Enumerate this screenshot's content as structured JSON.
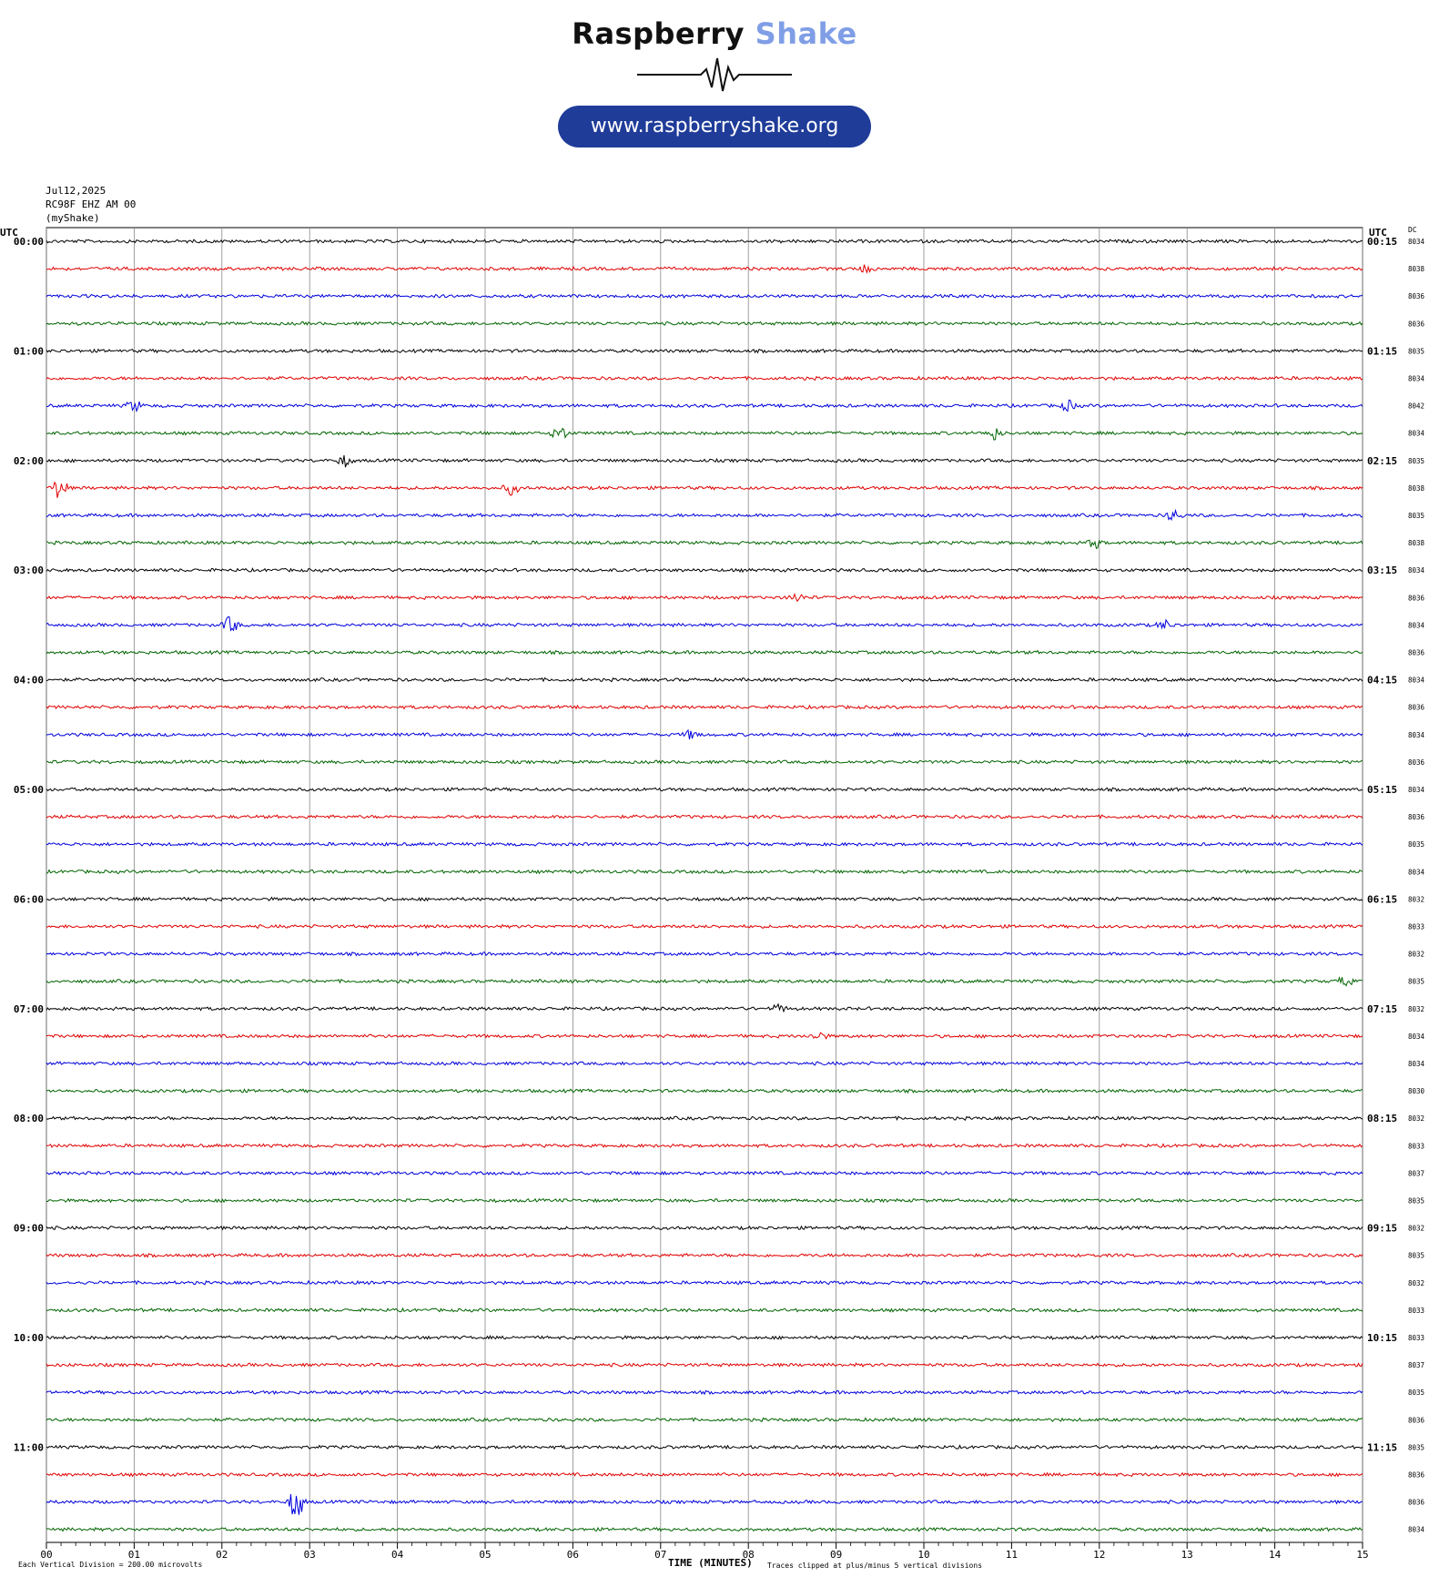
{
  "brand": {
    "name_part1": "Raspberry",
    "name_part2": "Shake",
    "url": "www.raspberryshake.org",
    "colors": {
      "dark": "#111111",
      "light": "#7f9ee6",
      "pill": "#1f3c99"
    }
  },
  "header": {
    "date": "Jul12,2025",
    "station": "RC98F EHZ AM 00",
    "source": "(myShake)"
  },
  "axis": {
    "left_label": "UTC",
    "right_label": "UTC",
    "dc_label": "DC",
    "x_title": "TIME (MINUTES)"
  },
  "footer": {
    "left_note": "Each Vertical Division =  200.00 microvolts",
    "right_note": "Traces clipped at plus/minus 5 vertical divisions"
  },
  "chart_data": {
    "type": "line",
    "title": "",
    "xlabel": "TIME (MINUTES)",
    "xlim": [
      0,
      15
    ],
    "x_ticks": [
      "00",
      "01",
      "02",
      "03",
      "04",
      "05",
      "06",
      "07",
      "08",
      "09",
      "10",
      "11",
      "12",
      "13",
      "14",
      "15"
    ],
    "grid": true,
    "trace_colors": [
      "#000000",
      "#e00000",
      "#0000dd",
      "#006400"
    ],
    "hour_labels_left": [
      "00:00",
      "01:00",
      "02:00",
      "03:00",
      "04:00",
      "05:00",
      "06:00",
      "07:00",
      "08:00",
      "09:00",
      "10:00",
      "11:00"
    ],
    "hour_labels_right": [
      "00:15",
      "01:15",
      "02:15",
      "03:15",
      "04:15",
      "05:15",
      "06:15",
      "07:15",
      "08:15",
      "09:15",
      "10:15",
      "11:15"
    ],
    "dc_offsets": [
      "8034",
      "8038",
      "8036",
      "8036",
      "8035",
      "8034",
      "8042",
      "8034",
      "8035",
      "8038",
      "8035",
      "8038",
      "8034",
      "8036",
      "8034",
      "8036",
      "8034",
      "8036",
      "8034",
      "8036",
      "8034",
      "8036",
      "8035",
      "8034",
      "8032",
      "8033",
      "8032",
      "8035",
      "8032",
      "8034",
      "8034",
      "8030",
      "8032",
      "8033",
      "8037",
      "8035",
      "8032",
      "8035",
      "8032",
      "8033",
      "8033",
      "8037",
      "8035",
      "8036",
      "8035",
      "8036",
      "8036",
      "8034"
    ],
    "trace_count": 48,
    "trace_span_minutes": 15,
    "notable_events": [
      {
        "trace": 1,
        "minute": 9.35,
        "amplitude": 0.3
      },
      {
        "trace": 6,
        "minute": 1.0,
        "amplitude": 0.45
      },
      {
        "trace": 6,
        "minute": 11.65,
        "amplitude": 0.4
      },
      {
        "trace": 7,
        "minute": 5.85,
        "amplitude": 0.6
      },
      {
        "trace": 7,
        "minute": 10.8,
        "amplitude": 0.5
      },
      {
        "trace": 8,
        "minute": 3.4,
        "amplitude": 0.45
      },
      {
        "trace": 9,
        "minute": 0.15,
        "amplitude": 0.9
      },
      {
        "trace": 9,
        "minute": 5.3,
        "amplitude": 0.5
      },
      {
        "trace": 10,
        "minute": 12.85,
        "amplitude": 0.45
      },
      {
        "trace": 11,
        "minute": 11.95,
        "amplitude": 0.4
      },
      {
        "trace": 13,
        "minute": 8.55,
        "amplitude": 0.35
      },
      {
        "trace": 14,
        "minute": 2.1,
        "amplitude": 0.7
      },
      {
        "trace": 14,
        "minute": 12.75,
        "amplitude": 0.35
      },
      {
        "trace": 18,
        "minute": 7.35,
        "amplitude": 0.35
      },
      {
        "trace": 27,
        "minute": 14.8,
        "amplitude": 0.4
      },
      {
        "trace": 28,
        "minute": 8.35,
        "amplitude": 0.3
      },
      {
        "trace": 29,
        "minute": 8.8,
        "amplitude": 0.35
      },
      {
        "trace": 46,
        "minute": 2.85,
        "amplitude": 1.5
      }
    ]
  }
}
